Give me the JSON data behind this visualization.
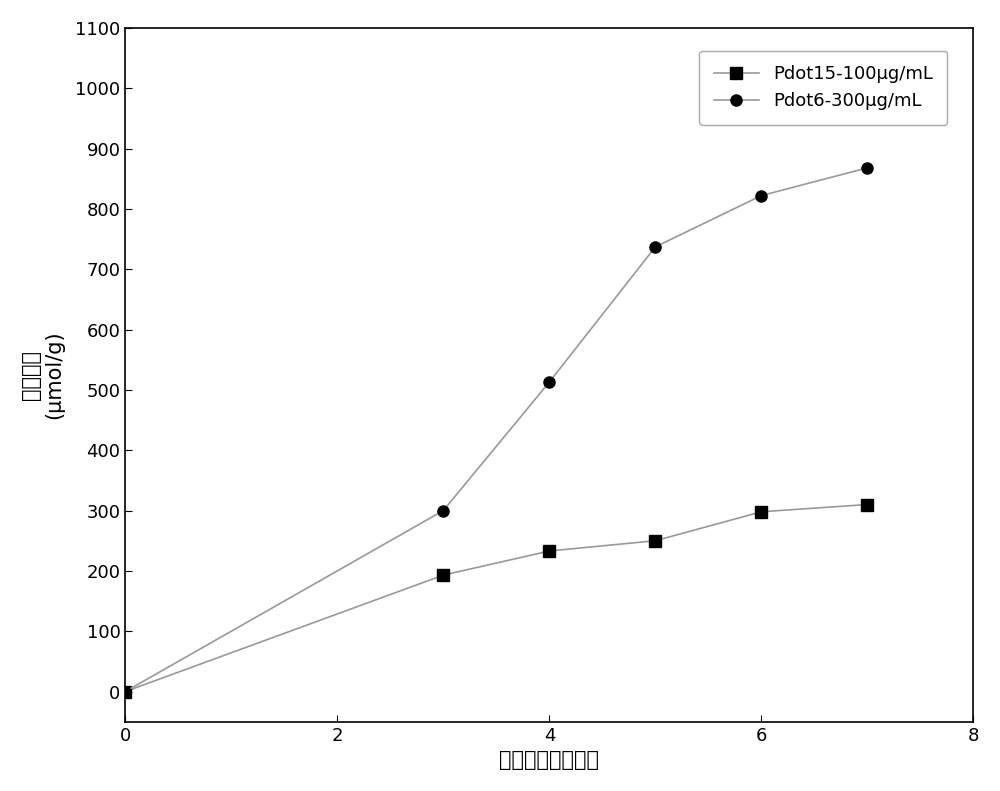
{
  "series1_label": "Pdot15-100μg/mL",
  "series2_label": "Pdot6-300μg/mL",
  "series1_x": [
    0,
    3,
    4,
    5,
    6,
    7
  ],
  "series1_y": [
    0,
    193,
    233,
    250,
    298,
    310
  ],
  "series2_x": [
    0,
    3,
    4,
    5,
    6,
    7
  ],
  "series2_y": [
    0,
    300,
    513,
    737,
    822,
    868
  ],
  "xlabel": "光照时间（小时）",
  "ylabel_chinese": "产氢速率",
  "ylabel_unit": "(μmol/g)",
  "xlim": [
    0,
    8
  ],
  "ylim": [
    -50,
    1100
  ],
  "xticks": [
    0,
    2,
    4,
    6,
    8
  ],
  "yticks": [
    0,
    100,
    200,
    300,
    400,
    500,
    600,
    700,
    800,
    900,
    1000,
    1100
  ],
  "line_color": "#999999",
  "marker_color": "#000000",
  "marker1": "s",
  "marker2": "o",
  "markersize": 8,
  "linewidth": 1.2,
  "legend_fontsize": 13,
  "axis_fontsize": 15,
  "tick_fontsize": 13,
  "background_color": "#ffffff"
}
